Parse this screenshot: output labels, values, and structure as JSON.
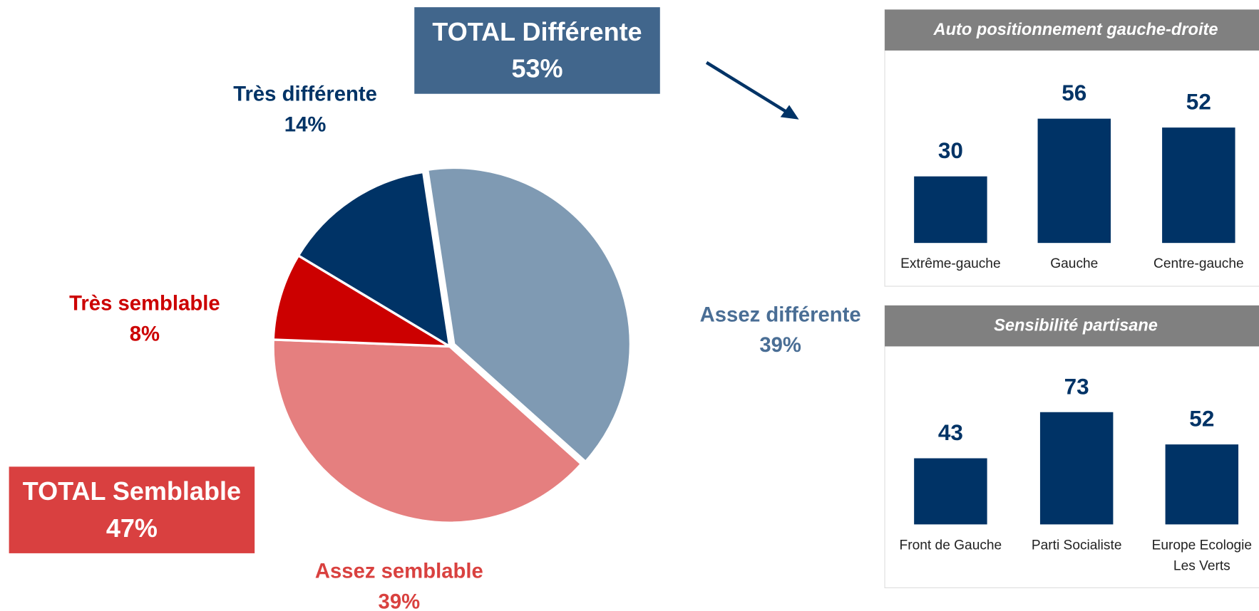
{
  "chart_data": [
    {
      "type": "pie",
      "categories": [
        "Assez différente",
        "Assez semblable",
        "Très semblable",
        "Très différente"
      ],
      "values": [
        39,
        39,
        8,
        14
      ],
      "value_labels": [
        "39%",
        "39%",
        "8%",
        "14%"
      ],
      "colors": [
        "#7f9ab3",
        "#e57f7f",
        "#cc0000",
        "#003366"
      ],
      "label_colors": [
        "#4a6e95",
        "#d9413f",
        "#cc0000",
        "#003366"
      ],
      "annotations": [
        {
          "text": "TOTAL Différente",
          "value_label": "53%",
          "color": "#41668c"
        },
        {
          "text": "TOTAL Semblable",
          "value_label": "47%",
          "color": "#d94040"
        }
      ]
    },
    {
      "type": "bar",
      "title": "Auto positionnement gauche-droite",
      "categories": [
        "Extrême-gauche",
        "Gauche",
        "Centre-gauche"
      ],
      "values": [
        30,
        56,
        52
      ],
      "color": "#003366"
    },
    {
      "type": "bar",
      "title": "Sensibilité partisane",
      "categories": [
        "Front de Gauche",
        "Parti Socialiste",
        "Europe Ecologie Les Verts"
      ],
      "values": [
        43,
        73,
        52
      ],
      "color": "#003366"
    }
  ]
}
